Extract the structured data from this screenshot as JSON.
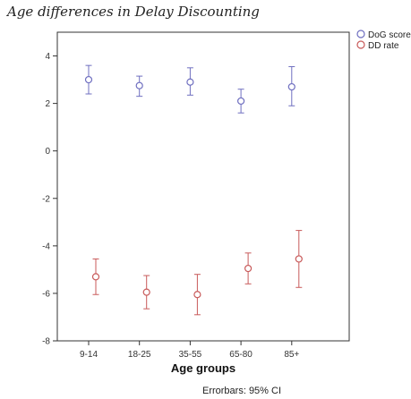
{
  "chart_data": {
    "type": "scatter",
    "title": "Age differences in Delay Discounting",
    "xlabel": "Age groups",
    "ylabel": "",
    "categories": [
      "9-14",
      "18-25",
      "35-55",
      "65-80",
      "85+"
    ],
    "ylim": [
      -8,
      5
    ],
    "yticks": [
      "4",
      "2",
      "0",
      "-2",
      "-4",
      "-6",
      "-8"
    ],
    "grid": false,
    "legend_position": "top-right",
    "footnote": "Errorbars: 95% CI",
    "series": [
      {
        "name": "DoG score",
        "color": "#6f6fc0",
        "marker": "circle",
        "values": [
          3.0,
          2.75,
          2.9,
          2.1,
          2.7
        ],
        "ci_low": [
          2.4,
          2.3,
          2.35,
          1.6,
          1.9
        ],
        "ci_high": [
          3.6,
          3.15,
          3.5,
          2.6,
          3.55
        ]
      },
      {
        "name": "DD rate",
        "color": "#c85a5a",
        "marker": "circle",
        "values": [
          -5.3,
          -5.95,
          -6.05,
          -4.95,
          -4.55
        ],
        "ci_low": [
          -6.05,
          -6.65,
          -6.9,
          -5.6,
          -5.75
        ],
        "ci_high": [
          -4.55,
          -5.25,
          -5.2,
          -4.3,
          -3.35
        ]
      }
    ]
  }
}
